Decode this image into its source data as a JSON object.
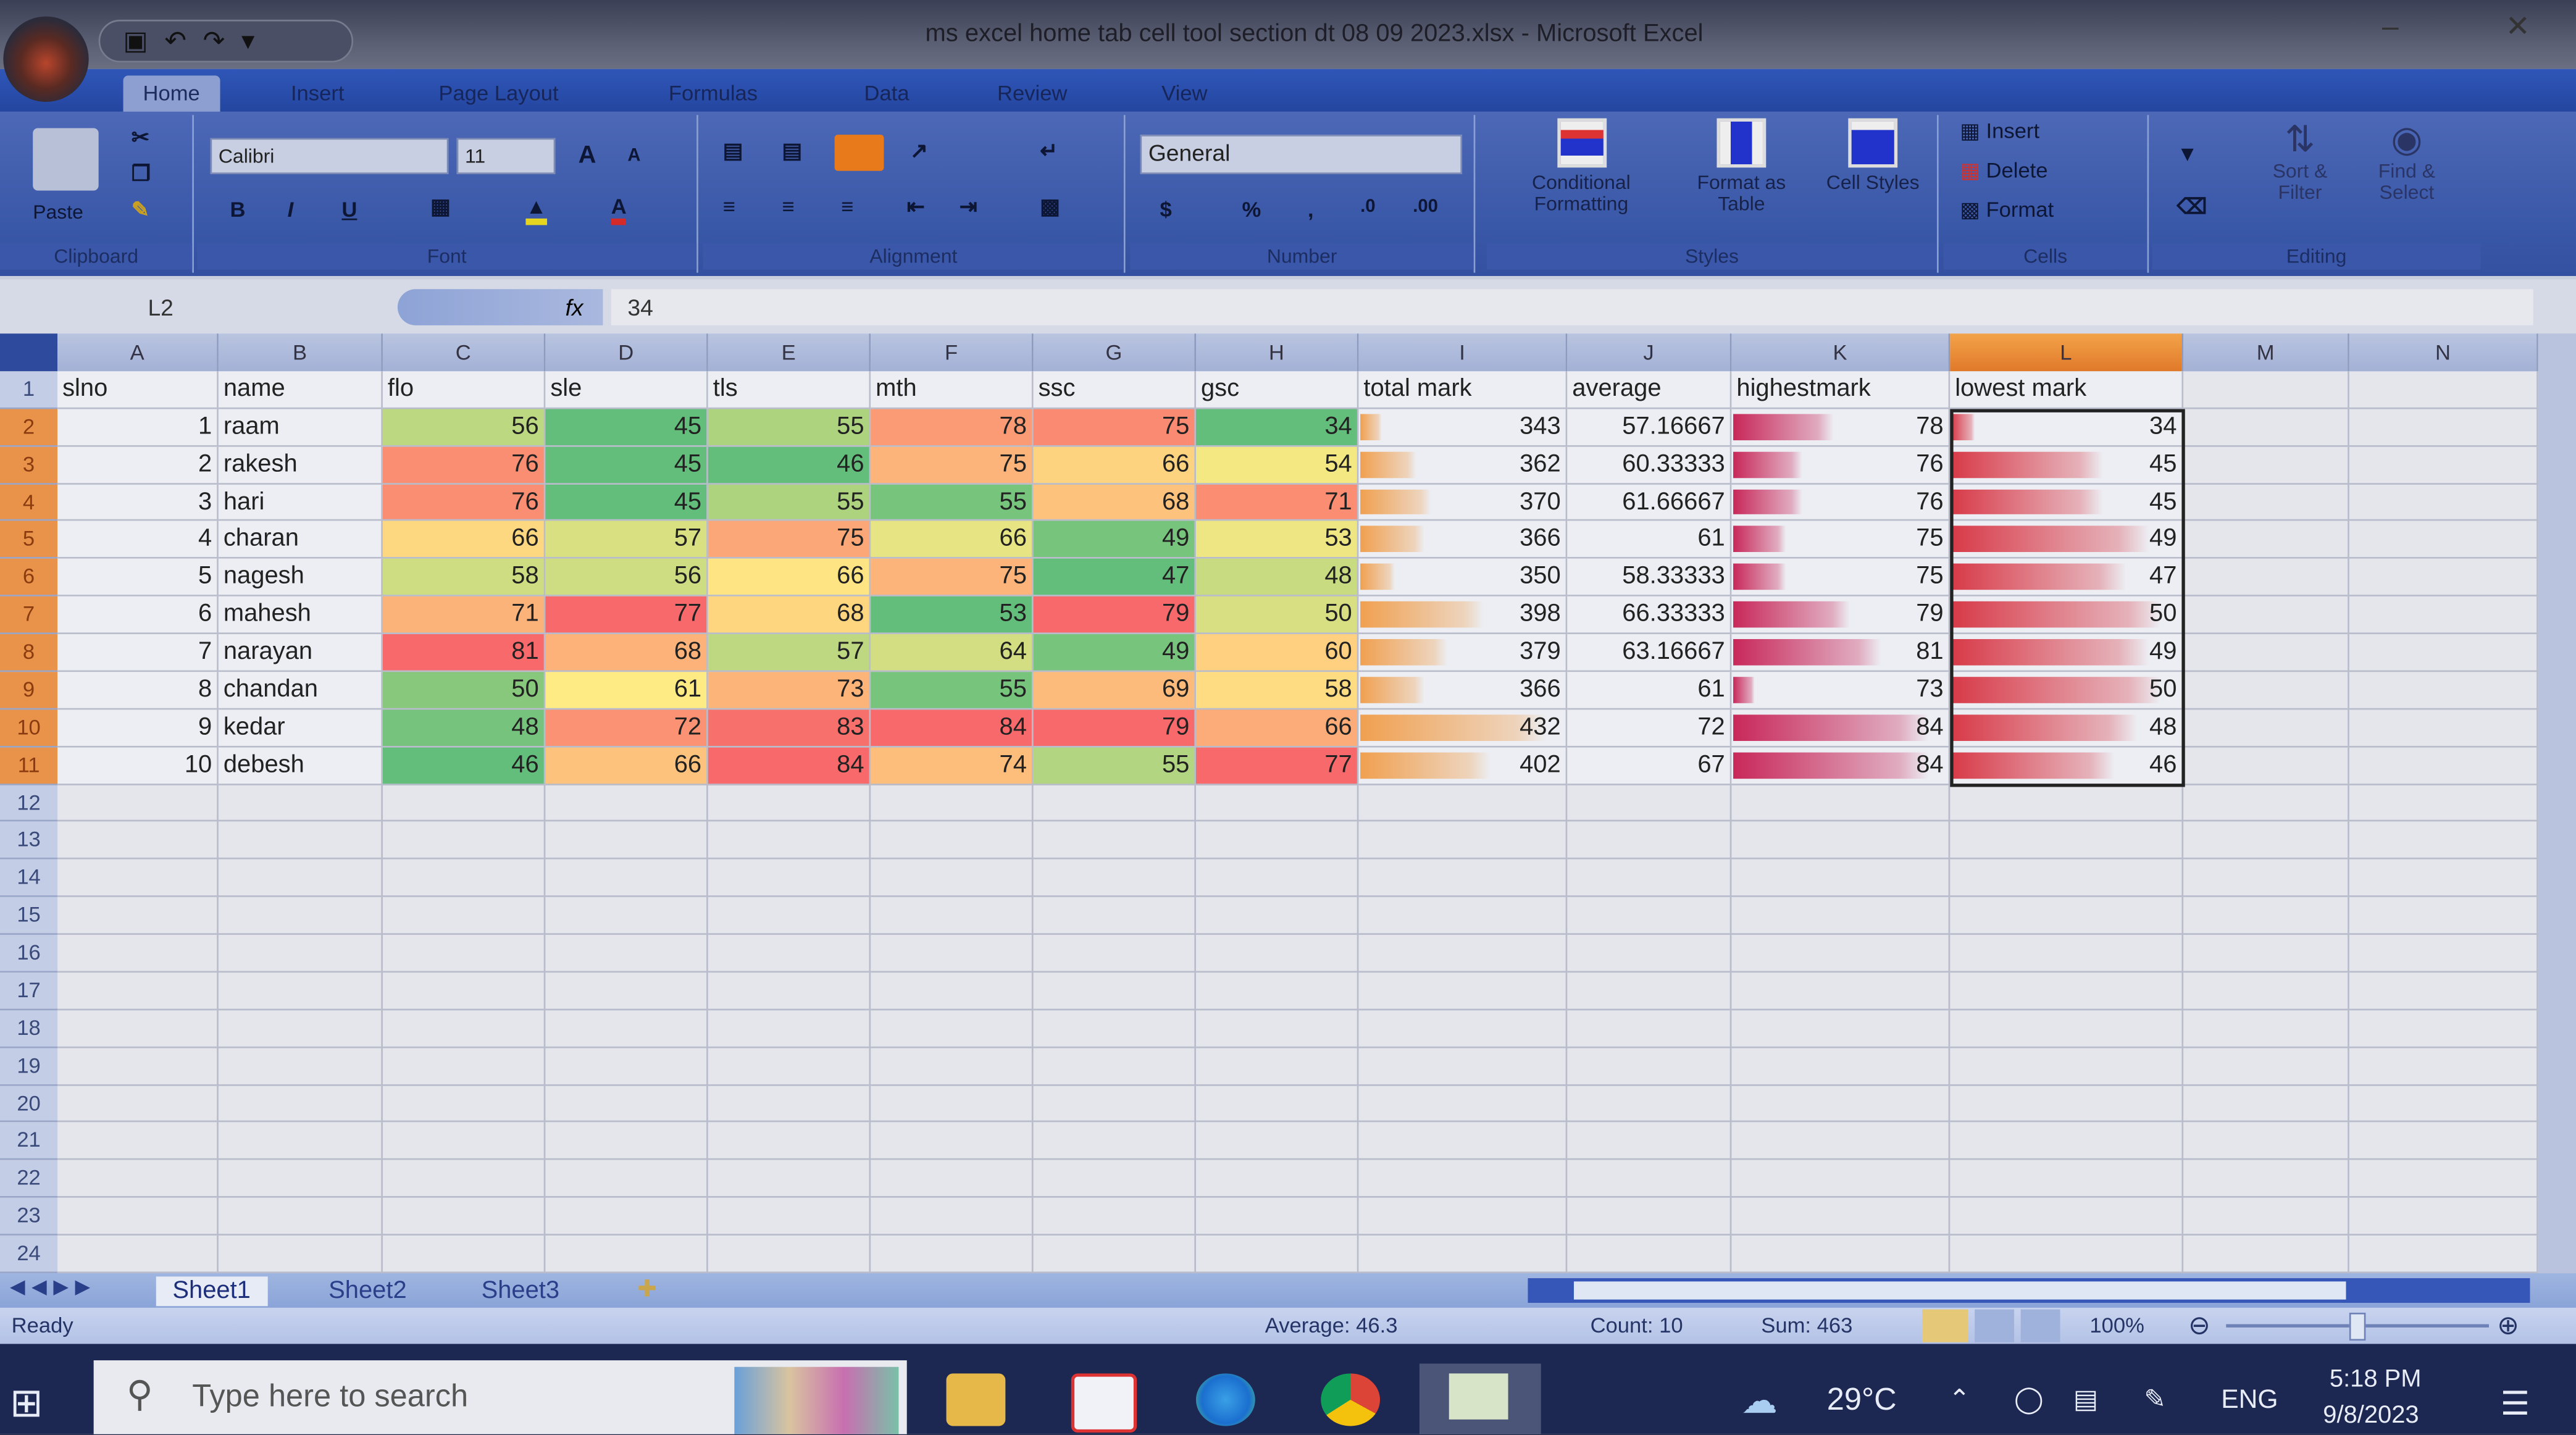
{
  "window": {
    "title": "ms excel home tab cell tool section dt 08 09 2023.xlsx - Microsoft Excel"
  },
  "quick_access": {
    "icons": [
      "save-icon",
      "undo-icon",
      "redo-icon",
      "customize-icon"
    ]
  },
  "ribbon_tabs": [
    "Home",
    "Insert",
    "Page Layout",
    "Formulas",
    "Data",
    "Review",
    "View"
  ],
  "ribbon": {
    "clipboard": {
      "label": "Clipboard",
      "paste": "Paste"
    },
    "font": {
      "label": "Font",
      "name": "Calibri",
      "size": "11",
      "bold": "B",
      "italic": "I",
      "underline": "U",
      "grow": "A",
      "shrink": "A"
    },
    "alignment": {
      "label": "Alignment"
    },
    "number": {
      "label": "Number",
      "format": "General",
      "currency": "$",
      "percent": "%",
      "comma": ",",
      "inc_decimal": ".0",
      "dec_decimal": ".00"
    },
    "styles": {
      "label": "Styles",
      "conditional": "Conditional Formatting",
      "format_table": "Format as Table",
      "cell_styles": "Cell Styles"
    },
    "cells": {
      "label": "Cells",
      "insert": "Insert",
      "delete": "Delete",
      "format": "Format"
    },
    "editing": {
      "label": "Editing",
      "sort": "Sort & Filter",
      "find": "Find & Select"
    }
  },
  "formula_bar": {
    "name_box": "L2",
    "fx": "fx",
    "value": "34"
  },
  "columns": [
    "A",
    "B",
    "C",
    "D",
    "E",
    "F",
    "G",
    "H",
    "I",
    "J",
    "K",
    "L",
    "M",
    "N"
  ],
  "headers": [
    "slno",
    "name",
    "flo",
    "sle",
    "tls",
    "mth",
    "ssc",
    "gsc",
    "total mark",
    "average",
    "highestmark",
    "lowest mark"
  ],
  "rows": [
    [
      1,
      "raam",
      56,
      45,
      55,
      78,
      75,
      34,
      343,
      "57.16667",
      78,
      34
    ],
    [
      2,
      "rakesh",
      76,
      45,
      46,
      75,
      66,
      54,
      362,
      "60.33333",
      76,
      45
    ],
    [
      3,
      "hari",
      76,
      45,
      55,
      55,
      68,
      71,
      370,
      "61.66667",
      76,
      45
    ],
    [
      4,
      "charan",
      66,
      57,
      75,
      66,
      49,
      53,
      366,
      "61",
      75,
      49
    ],
    [
      5,
      "nagesh",
      58,
      56,
      66,
      75,
      47,
      48,
      350,
      "58.33333",
      75,
      47
    ],
    [
      6,
      "mahesh",
      71,
      77,
      68,
      53,
      79,
      50,
      398,
      "66.33333",
      79,
      50
    ],
    [
      7,
      "narayan",
      81,
      68,
      57,
      64,
      49,
      60,
      379,
      "63.16667",
      81,
      49
    ],
    [
      8,
      "chandan",
      50,
      61,
      73,
      55,
      69,
      58,
      366,
      "61",
      73,
      50
    ],
    [
      9,
      "kedar",
      48,
      72,
      83,
      84,
      79,
      66,
      432,
      "72",
      84,
      48
    ],
    [
      10,
      "debesh",
      46,
      66,
      84,
      74,
      55,
      77,
      402,
      "67",
      84,
      46
    ]
  ],
  "row_numbers": [
    "1",
    "2",
    "3",
    "4",
    "5",
    "6",
    "7",
    "8",
    "9",
    "10",
    "11",
    "12",
    "13",
    "14",
    "15",
    "16",
    "17",
    "18",
    "19",
    "20",
    "21",
    "22",
    "23",
    "24"
  ],
  "selection": {
    "columns": [
      "L"
    ],
    "rows": [
      "2",
      "3",
      "4",
      "5",
      "6",
      "7",
      "8",
      "9",
      "10",
      "11"
    ]
  },
  "formatting": {
    "color_scale": {
      "low": "#63BE7B",
      "mid": "#FFEB84",
      "high": "#F8696B"
    },
    "data_bars": {
      "total mark": "#F0A050",
      "highestmark": "#C8285A",
      "lowest mark": "#D83A48"
    }
  },
  "sheets": [
    "Sheet1",
    "Sheet2",
    "Sheet3"
  ],
  "active_sheet": "Sheet1",
  "status": {
    "ready": "Ready",
    "average": "Average: 46.3",
    "count": "Count: 10",
    "sum": "Sum: 463",
    "zoom": "100%"
  },
  "taskbar": {
    "search_placeholder": "Type here to search",
    "weather": "29°C",
    "language": "ENG",
    "time": "5:18 PM",
    "date": "9/8/2023"
  }
}
